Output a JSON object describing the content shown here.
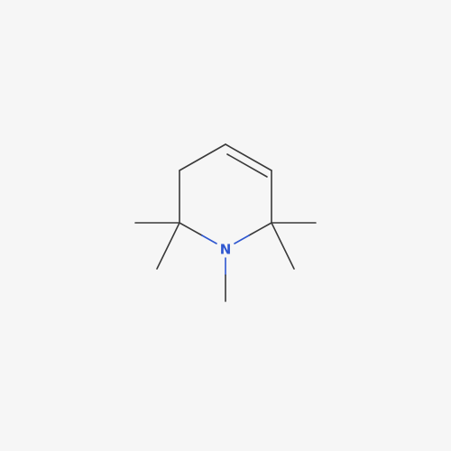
{
  "molecule": {
    "nitrogen_label": "N",
    "colors": {
      "background": "#f6f6f6",
      "bond": "#3a3a3a",
      "nitrogen": "#2f57d0"
    }
  }
}
